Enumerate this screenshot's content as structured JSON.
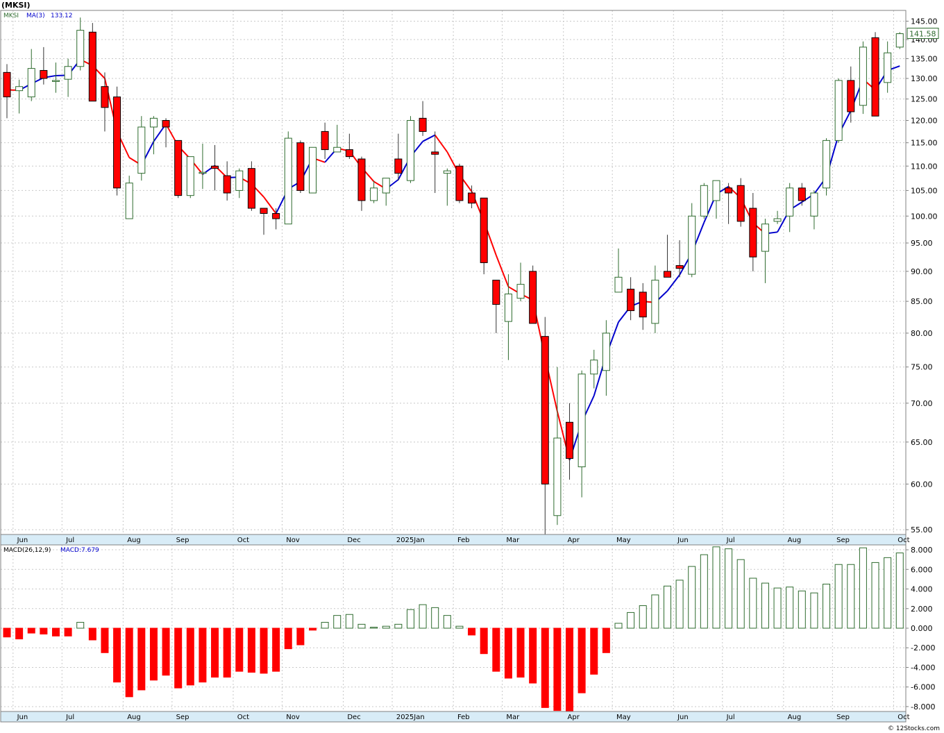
{
  "header": {
    "ticker_label": "(MKSI)"
  },
  "price_panel": {
    "legend": {
      "symbol": "MKSI",
      "ma_label": "MA(3)",
      "ma_value": "133.12"
    },
    "last_price": "141.58",
    "y_ticks": [
      "145.00",
      "140.00",
      "135.00",
      "130.00",
      "125.00",
      "120.00",
      "115.00",
      "110.00",
      "105.00",
      "100.00",
      "95.00",
      "90.00",
      "85.00",
      "80.00",
      "75.00",
      "70.00",
      "65.00",
      "60.00",
      "55.00"
    ]
  },
  "macd_panel": {
    "legend": {
      "label": "MACD(26,12,9)",
      "value_label": "MACD:7.679"
    },
    "y_ticks": [
      "8.000",
      "6.000",
      "4.000",
      "2.000",
      "0.000",
      "-2.000",
      "-4.000",
      "-6.000",
      "-8.000"
    ]
  },
  "months": [
    "Jun",
    "Jul",
    "Aug",
    "Sep",
    "Oct",
    "Nov",
    "Dec",
    "2025Jan",
    "Feb",
    "Mar",
    "Apr",
    "May",
    "Jun",
    "Jul",
    "Aug",
    "Sep",
    "Oct"
  ],
  "footer": {
    "credit": "© 12Stocks.com"
  },
  "colors": {
    "up": "#2e6b2e",
    "down": "#ff0000",
    "ma_up": "#0000cc",
    "ma_down": "#ff0000",
    "axis_bg": "#d8ecf7"
  },
  "chart_data": [
    {
      "type": "candlestick",
      "title": "(MKSI)",
      "y_scale": "log",
      "ylim": [
        54.5,
        148
      ],
      "series": [
        {
          "name": "MKSI",
          "candles": [
            [
              131.5,
              133.6,
              120.5,
              125.5
            ],
            [
              127.0,
              129.7,
              121.6,
              128.0
            ],
            [
              125.5,
              137.5,
              124.5,
              132.5
            ],
            [
              132.0,
              138.0,
              128.5,
              130.0
            ],
            [
              129.5,
              134.0,
              126.5,
              129.5
            ],
            [
              129.8,
              135.0,
              125.5,
              133.0
            ],
            [
              133.0,
              146.0,
              132.0,
              142.5
            ],
            [
              142.0,
              144.5,
              124.5,
              124.5
            ],
            [
              128.0,
              131.5,
              117.5,
              123.0
            ],
            [
              125.5,
              128.0,
              104.0,
              105.5
            ],
            [
              99.5,
              108.0,
              99.5,
              106.5
            ],
            [
              108.5,
              121.0,
              107.0,
              118.5
            ],
            [
              118.5,
              121.0,
              112.5,
              120.5
            ],
            [
              120.0,
              120.5,
              114.0,
              118.5
            ],
            [
              115.5,
              115.5,
              103.5,
              104.0
            ],
            [
              104.0,
              112.0,
              103.5,
              112.0
            ],
            [
              108.5,
              114.8,
              105.3,
              108.7
            ],
            [
              110.0,
              114.5,
              105.0,
              109.5
            ],
            [
              108.0,
              111.0,
              103.0,
              104.5
            ],
            [
              105.0,
              109.5,
              103.5,
              109.0
            ],
            [
              109.5,
              111.0,
              101.0,
              101.5
            ],
            [
              101.5,
              101.5,
              96.5,
              100.5
            ],
            [
              100.5,
              101.5,
              97.5,
              99.5
            ],
            [
              98.5,
              117.5,
              98.5,
              116.0
            ],
            [
              115.0,
              115.5,
              104.5,
              105.0
            ],
            [
              104.5,
              114.0,
              104.5,
              114.0
            ],
            [
              117.5,
              119.5,
              111.5,
              113.5
            ],
            [
              113.0,
              119.0,
              113.0,
              114.0
            ],
            [
              113.5,
              117.0,
              111.5,
              112.0
            ],
            [
              111.5,
              112.0,
              101.0,
              103.0
            ],
            [
              103.0,
              107.0,
              102.5,
              105.5
            ],
            [
              104.5,
              107.0,
              102.0,
              107.5
            ],
            [
              111.5,
              117.0,
              107.0,
              108.5
            ],
            [
              107.0,
              121.0,
              106.5,
              120.0
            ],
            [
              120.5,
              124.5,
              116.5,
              117.5
            ],
            [
              113.0,
              117.5,
              104.5,
              112.5
            ],
            [
              108.5,
              109.5,
              102.0,
              109.0
            ],
            [
              110.0,
              110.5,
              102.5,
              103.0
            ],
            [
              104.5,
              106.0,
              101.5,
              102.5
            ],
            [
              103.5,
              103.5,
              89.5,
              91.5
            ],
            [
              88.5,
              88.5,
              80.0,
              84.5
            ],
            [
              81.8,
              89.5,
              76.0,
              86.2
            ],
            [
              85.5,
              91.5,
              85.0,
              87.8
            ],
            [
              90.0,
              91.0,
              81.5,
              81.5
            ],
            [
              79.5,
              82.5,
              54.5,
              60.0
            ],
            [
              56.5,
              75.0,
              55.5,
              65.5
            ],
            [
              67.5,
              70.0,
              60.5,
              63.0
            ],
            [
              62.0,
              74.5,
              58.5,
              74.0
            ],
            [
              74.0,
              77.5,
              72.0,
              76.0
            ],
            [
              74.5,
              82.0,
              71.0,
              80.0
            ],
            [
              86.5,
              94.0,
              86.5,
              89.0
            ],
            [
              87.0,
              89.0,
              82.0,
              83.5
            ],
            [
              86.5,
              88.0,
              80.5,
              82.5
            ],
            [
              81.5,
              91.0,
              80.0,
              88.5
            ],
            [
              90.0,
              96.5,
              89.0,
              89.0
            ],
            [
              91.0,
              95.5,
              89.0,
              90.5
            ],
            [
              89.5,
              102.5,
              89.0,
              100.0
            ],
            [
              100.0,
              106.5,
              99.5,
              106.0
            ],
            [
              103.0,
              107.0,
              99.5,
              107.0
            ],
            [
              105.5,
              106.5,
              98.5,
              104.5
            ],
            [
              106.0,
              107.5,
              98.0,
              99.0
            ],
            [
              101.5,
              104.5,
              90.0,
              92.5
            ],
            [
              93.5,
              99.5,
              88.0,
              98.5
            ],
            [
              99.0,
              101.0,
              98.5,
              99.5
            ],
            [
              100.0,
              106.5,
              97.0,
              105.5
            ],
            [
              105.5,
              106.5,
              102.0,
              103.0
            ],
            [
              100.0,
              105.0,
              97.5,
              104.5
            ],
            [
              105.5,
              116.0,
              104.0,
              115.5
            ],
            [
              115.5,
              130.0,
              115.0,
              129.5
            ],
            [
              129.5,
              133.0,
              119.5,
              122.0
            ],
            [
              123.5,
              139.5,
              121.5,
              138.0
            ],
            [
              140.5,
              142.0,
              121.0,
              121.0
            ],
            [
              129.0,
              139.5,
              126.5,
              136.5
            ],
            [
              138.0,
              142.0,
              137.5,
              141.58
            ]
          ],
          "ma3": [
            127.2,
            127.1,
            128.7,
            130.2,
            130.7,
            130.8,
            134.8,
            133.2,
            130.0,
            117.5,
            111.8,
            110.2,
            115.3,
            119.2,
            114.3,
            111.5,
            108.3,
            110.1,
            107.6,
            107.7,
            106.3,
            103.7,
            100.5,
            105.3,
            106.8,
            111.7,
            110.8,
            113.8,
            113.2,
            109.7,
            106.8,
            105.3,
            107.2,
            112.0,
            115.3,
            116.7,
            113.0,
            108.2,
            104.8,
            99.0,
            92.8,
            87.4,
            86.2,
            85.2,
            76.4,
            68.9,
            62.8,
            67.5,
            71.0,
            76.7,
            81.7,
            84.2,
            85.0,
            84.8,
            86.7,
            89.4,
            93.2,
            98.8,
            104.3,
            105.8,
            103.5,
            98.7,
            96.7,
            97.0,
            101.2,
            102.7,
            104.3,
            107.7,
            116.8,
            122.3,
            129.8,
            127.2,
            132.0,
            133.12
          ]
        }
      ]
    },
    {
      "type": "bar",
      "title": "MACD(26,12,9)",
      "ylim": [
        -8.5,
        8.5
      ],
      "series": [
        {
          "name": "MACD",
          "values": [
            -0.9,
            -1.1,
            -0.5,
            -0.6,
            -0.8,
            -0.8,
            0.6,
            -1.2,
            -2.5,
            -5.5,
            -7.0,
            -6.3,
            -5.3,
            -4.8,
            -6.1,
            -5.8,
            -5.5,
            -5.0,
            -5.0,
            -4.4,
            -4.5,
            -4.6,
            -4.4,
            -2.1,
            -1.7,
            -0.2,
            0.6,
            1.3,
            1.4,
            0.4,
            0.1,
            0.2,
            0.4,
            1.9,
            2.4,
            2.1,
            1.3,
            0.2,
            -0.7,
            -2.6,
            -4.4,
            -5.1,
            -5.0,
            -5.6,
            -8.1,
            -8.4,
            -8.6,
            -6.6,
            -4.7,
            -2.5,
            0.5,
            1.6,
            2.3,
            3.4,
            4.3,
            4.9,
            6.3,
            7.5,
            8.3,
            8.1,
            7.0,
            5.1,
            4.6,
            4.1,
            4.2,
            3.8,
            3.6,
            4.5,
            6.5,
            6.5,
            8.2,
            6.7,
            7.2,
            7.679
          ]
        }
      ]
    }
  ]
}
